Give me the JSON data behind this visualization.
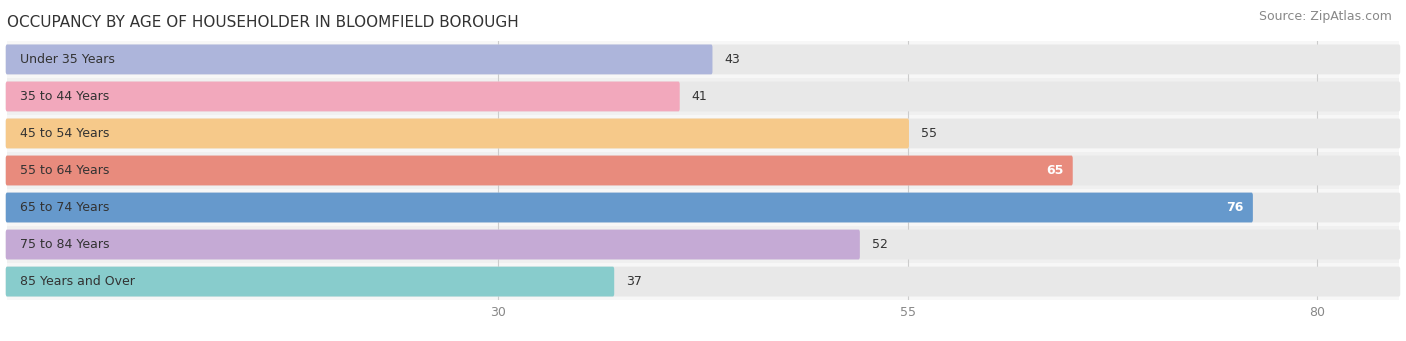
{
  "title": "OCCUPANCY BY AGE OF HOUSEHOLDER IN BLOOMFIELD BOROUGH",
  "source": "Source: ZipAtlas.com",
  "categories": [
    "Under 35 Years",
    "35 to 44 Years",
    "45 to 54 Years",
    "55 to 64 Years",
    "65 to 74 Years",
    "75 to 84 Years",
    "85 Years and Over"
  ],
  "values": [
    43,
    41,
    55,
    65,
    76,
    52,
    37
  ],
  "bar_colors": [
    "#adb5db",
    "#f2a8bc",
    "#f6c98a",
    "#e88b7d",
    "#6699cc",
    "#c5aad5",
    "#88cccc"
  ],
  "bar_bg_color": "#e8e8e8",
  "row_bg_colors": [
    "#f5f5f5",
    "#efefef"
  ],
  "xlim": [
    0,
    85
  ],
  "xticks": [
    30,
    55,
    80
  ],
  "title_fontsize": 11,
  "source_fontsize": 9,
  "label_fontsize": 9,
  "value_fontsize": 9,
  "bar_height": 0.65,
  "figsize": [
    14.06,
    3.41
  ],
  "dpi": 100,
  "bg_color": "#ffffff",
  "bar_label_color_threshold": 60,
  "title_color": "#333333",
  "source_color": "#888888",
  "tick_color": "#888888",
  "category_label_color": "#333333",
  "grid_color": "#cccccc",
  "row_colors": [
    "#f7f7f7",
    "#f0f0f0"
  ]
}
